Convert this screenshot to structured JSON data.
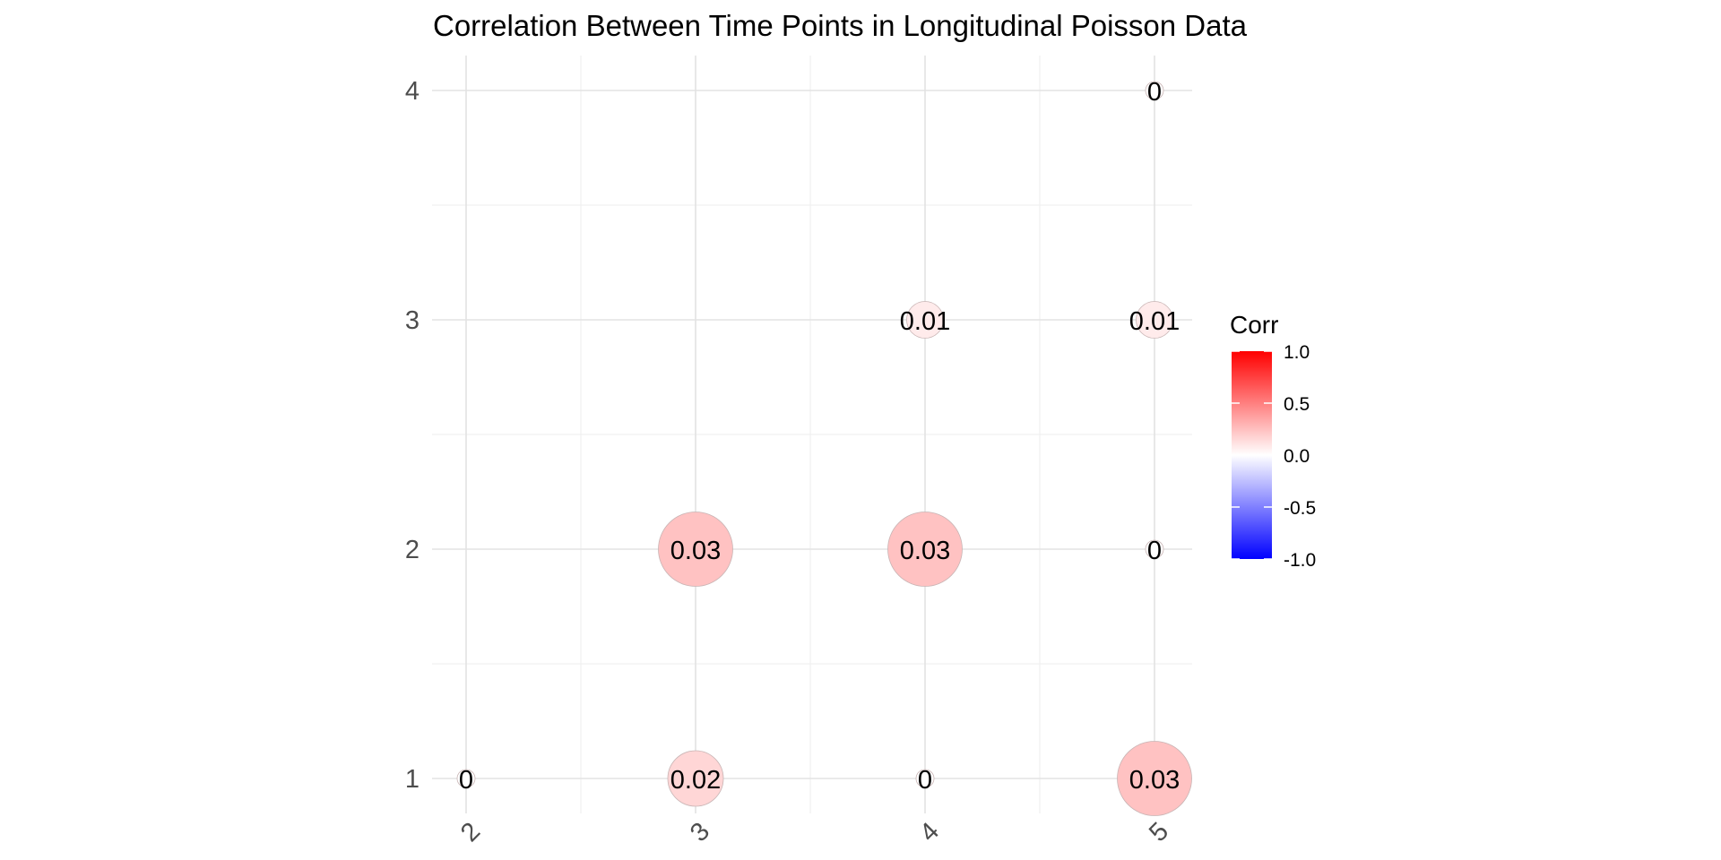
{
  "chart_data": {
    "type": "heatmap",
    "title": "Correlation Between Time Points in Longitudinal Poisson Data",
    "xlabel": "",
    "ylabel": "",
    "x_categories": [
      "2",
      "3",
      "4",
      "5"
    ],
    "y_categories": [
      "1",
      "2",
      "3",
      "4"
    ],
    "cells": [
      {
        "x": "2",
        "y": "1",
        "value": 0,
        "label": "0"
      },
      {
        "x": "3",
        "y": "1",
        "value": 0.02,
        "label": "0.02"
      },
      {
        "x": "4",
        "y": "1",
        "value": 0,
        "label": "0"
      },
      {
        "x": "5",
        "y": "1",
        "value": 0.03,
        "label": "0.03"
      },
      {
        "x": "3",
        "y": "2",
        "value": 0.03,
        "label": "0.03"
      },
      {
        "x": "4",
        "y": "2",
        "value": 0.03,
        "label": "0.03"
      },
      {
        "x": "5",
        "y": "2",
        "value": 0,
        "label": "0"
      },
      {
        "x": "4",
        "y": "3",
        "value": 0.01,
        "label": "0.01"
      },
      {
        "x": "5",
        "y": "3",
        "value": 0.01,
        "label": "0.01"
      },
      {
        "x": "5",
        "y": "4",
        "value": 0,
        "label": "0"
      }
    ],
    "legend": {
      "title": "Corr",
      "position": "right",
      "range": [
        -1,
        1
      ],
      "ticks": [
        "1.0",
        "0.5",
        "0.0",
        "-0.5",
        "-1.0"
      ],
      "colors": {
        "low": "#0000ff",
        "mid": "#ffffff",
        "high": "#ff0000"
      }
    },
    "grid": true
  }
}
